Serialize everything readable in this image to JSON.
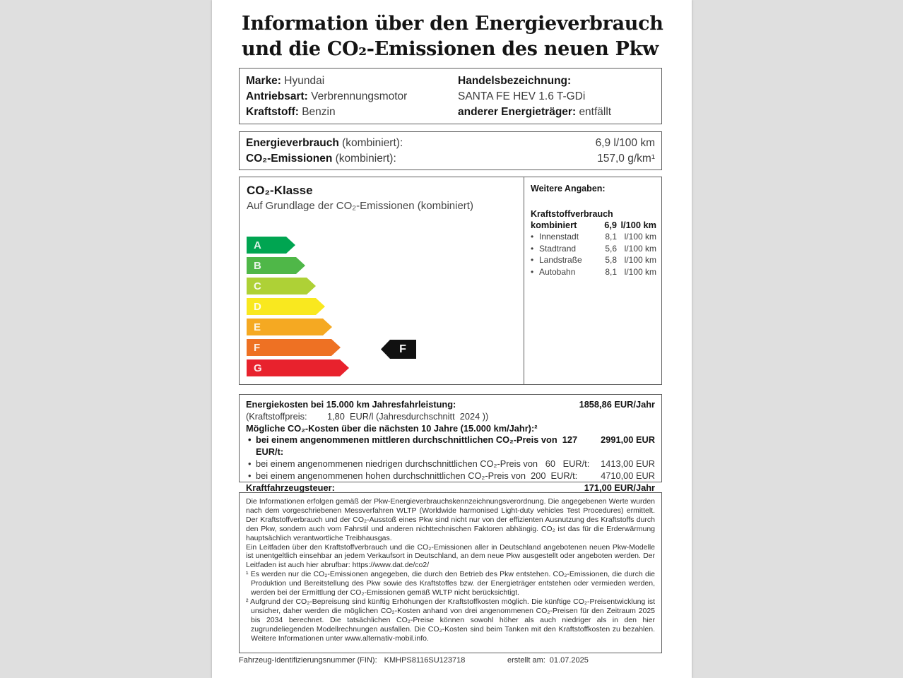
{
  "header": {
    "title_line1": "Information über den Energieverbrauch",
    "title_line2": "und die CO₂-Emissionen des neuen Pkw"
  },
  "vehicle_info": {
    "marke_label": "Marke:",
    "marke_value": "Hyundai",
    "antriebsart_label": "Antriebsart:",
    "antriebsart_value": "Verbrennungsmotor",
    "kraftstoff_label": "Kraftstoff:",
    "kraftstoff_value": "Benzin",
    "handelsbezeichnung_label": "Handelsbezeichnung:",
    "handelsbezeichnung_value": "SANTA FE HEV 1.6 T-GDi",
    "energietraeger_label": "anderer Energieträger:",
    "energietraeger_value": "entfällt"
  },
  "consumption": {
    "energieverbrauch_label": "Energieverbrauch",
    "energieverbrauch_qualifier": " (kombiniert):",
    "energieverbrauch_value": "6,9 l/100 km",
    "co2_label": "CO₂-Emissionen",
    "co2_qualifier": " (kombiniert):",
    "co2_value": "157,0 g/km¹"
  },
  "co2_class": {
    "title": "CO₂-Klasse",
    "subtitle": "Auf Grundlage der CO₂-Emissionen (kombiniert)",
    "classes": [
      {
        "letter": "A",
        "color": "#00a551"
      },
      {
        "letter": "B",
        "color": "#4fb748"
      },
      {
        "letter": "C",
        "color": "#aed136"
      },
      {
        "letter": "D",
        "color": "#f9e81f"
      },
      {
        "letter": "E",
        "color": "#f5a922"
      },
      {
        "letter": "F",
        "color": "#ee7123"
      },
      {
        "letter": "G",
        "color": "#e8222d"
      }
    ],
    "vehicle_class": "F",
    "indicator_color": "#111111"
  },
  "weitere_angaben": {
    "title": "Weitere Angaben:",
    "section_label": "Kraftstoffverbrauch",
    "kombiniert_label": "kombiniert",
    "kombiniert_value": "6,9",
    "kombiniert_unit": "l/100 km",
    "rows": [
      {
        "label": "Innenstadt",
        "value": "8,1",
        "unit": "l/100 km"
      },
      {
        "label": "Stadtrand",
        "value": "5,6",
        "unit": "l/100 km"
      },
      {
        "label": "Landstraße",
        "value": "5,8",
        "unit": "l/100 km"
      },
      {
        "label": "Autobahn",
        "value": "8,1",
        "unit": "l/100 km"
      }
    ]
  },
  "costs": {
    "energiekosten_label": "Energiekosten bei 15.000 km Jahresfahrleistung:",
    "energiekosten_value": "1858,86  EUR/Jahr",
    "kraftstoffpreis_line": "(Kraftstoffpreis:        1,80  EUR/l (Jahresdurchschnitt  2024 ))",
    "co2_kosten_heading": "Mögliche CO₂-Kosten über die nächsten 10 Jahre (15.000 km/Jahr):²",
    "bullets": [
      {
        "text": "bei einem angenommenen mittleren durchschnittlichen CO₂-Preis von  127  EUR/t:",
        "value": "2991,00 EUR"
      },
      {
        "text": "bei einem angenommenen niedrigen durchschnittlichen CO₂-Preis von   60   EUR/t:",
        "value": "1413,00 EUR"
      },
      {
        "text": "bei einem angenommenen hohen durchschnittlichen CO₂-Preis von  200  EUR/t:",
        "value": "4710,00 EUR"
      }
    ],
    "kfz_steuer_label": "Kraftfahrzeugsteuer:",
    "kfz_steuer_value": "171,00 EUR/Jahr"
  },
  "fineprint": {
    "para1": "Die Informationen erfolgen gemäß der Pkw-Energieverbrauchskennzeichnungsverordnung. Die angegebenen Werte wurden nach dem vorgeschriebenen Messverfahren WLTP (Worldwide harmonised Light-duty vehicles Test Procedures) ermittelt. Der Kraftstoffverbrauch und der CO₂-Ausstoß eines Pkw sind nicht nur von der effizienten Ausnutzung des Kraftstoffs durch den Pkw, sondern auch vom Fahrstil und anderen nichttechnischen Faktoren abhängig. CO₂ ist das für die Erderwärmung hauptsächlich verantwortliche Treibhausgas.",
    "para2": "Ein Leitfaden über den Kraftstoffverbrauch und die CO₂-Emissionen aller in Deutschland angebotenen neuen Pkw-Modelle ist unentgeltlich einsehbar an jedem Verkaufsort in Deutschland, an dem neue Pkw ausgestellt oder angeboten werden. Der Leitfaden ist auch hier abrufbar:   https://www.dat.de/co2/",
    "footnote1": "¹ Es werden nur die CO₂-Emissionen angegeben, die durch den Betrieb des Pkw entstehen. CO₂-Emissionen, die durch die Produktion und Bereitstellung des Pkw sowie des Kraftstoffes bzw. der Energieträger entstehen oder vermieden werden, werden bei der Ermittlung der CO₂-Emissionen gemäß WLTP nicht berücksichtigt.",
    "footnote2": "² Aufgrund der CO₂-Bepreisung sind künftig Erhöhungen der Kraftstoffkosten möglich. Die künftige CO₂-Preisentwicklung ist unsicher, daher werden die möglichen CO₂-Kosten anhand von drei angenommenen CO₂-Preisen für den Zeitraum  2025 bis  2034  berechnet. Die tatsächlichen CO₂-Preise können sowohl höher als auch niedriger als in den hier zugrundeliegenden Modellrechnungen ausfallen. Die CO₂-Kosten sind beim Tanken mit den Kraftstoffkosten zu bezahlen. Weitere Informationen unter www.alternativ-mobil.info."
  },
  "footer": {
    "fin_label": "Fahrzeug-Identifizierungsnummer (FIN):",
    "fin_value": "KMHPS8116SU123718",
    "created_label": "erstellt am:",
    "created_value": "01.07.2025"
  }
}
